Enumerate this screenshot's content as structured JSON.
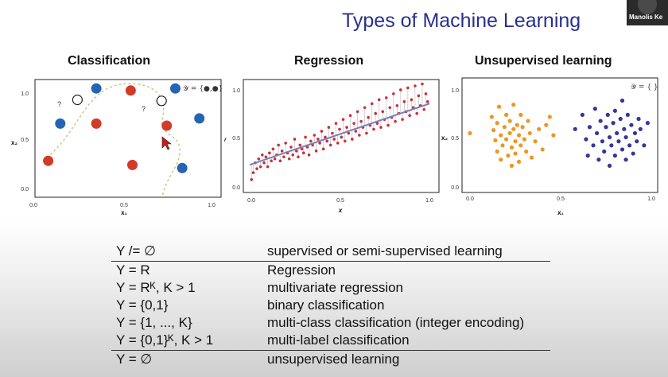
{
  "slide": {
    "title": "Types of Machine Learning",
    "presenter_name": "Manolis Ke"
  },
  "panels": {
    "classification": {
      "title": "Classification",
      "annotation": "𝒴 = {●,●}",
      "question_mark": "?",
      "xlabel": "x₁",
      "ylabel": "x₂",
      "xticks": [
        "0.0",
        "0.5",
        "1.0"
      ],
      "yticks": [
        "0.0",
        "0.5",
        "1.0"
      ],
      "colors": {
        "red": "#d23a2a",
        "blue": "#2563b4"
      }
    },
    "regression": {
      "title": "Regression",
      "xlabel": "x",
      "ylabel": "y",
      "xticks": [
        "0.0",
        "0.5",
        "1.0"
      ],
      "yticks": [
        "0.0",
        "0.5",
        "1.0"
      ],
      "colors": {
        "points": "#c8303a",
        "line": "#7a80b8"
      }
    },
    "unsupervised": {
      "title": "Unsupervised learning",
      "annotation": "𝒴 = { }",
      "xlabel": "x₁",
      "ylabel": "x₂",
      "xticks": [
        "0.0",
        "0.5",
        "1.0"
      ],
      "yticks": [
        "0.0",
        "0.5",
        "1.0"
      ],
      "colors": {
        "cluster_a": "#f0961e",
        "cluster_b": "#33389a"
      }
    }
  },
  "chart_data": [
    {
      "type": "scatter",
      "title": "Classification",
      "xlim": [
        0,
        1
      ],
      "ylim": [
        0,
        1
      ],
      "series": [
        {
          "name": "red",
          "points": [
            [
              0.04,
              0.26
            ],
            [
              0.32,
              0.62
            ],
            [
              0.52,
              0.94
            ],
            [
              0.53,
              0.22
            ],
            [
              0.73,
              0.6
            ]
          ]
        },
        {
          "name": "blue",
          "points": [
            [
              0.11,
              0.62
            ],
            [
              0.32,
              0.96
            ],
            [
              0.78,
              0.96
            ],
            [
              0.92,
              0.67
            ],
            [
              0.82,
              0.19
            ]
          ]
        },
        {
          "name": "unlabeled",
          "points": [
            [
              0.21,
              0.85
            ],
            [
              0.7,
              0.84
            ]
          ]
        }
      ]
    },
    {
      "type": "scatter",
      "title": "Regression",
      "xlim": [
        0,
        1
      ],
      "ylim": [
        0,
        1
      ],
      "trend": {
        "x0": 0.0,
        "y0": 0.2,
        "x1": 1.0,
        "y1": 0.82
      },
      "points": [
        [
          0.01,
          0.05
        ],
        [
          0.02,
          0.12
        ],
        [
          0.03,
          0.22
        ],
        [
          0.04,
          0.16
        ],
        [
          0.05,
          0.26
        ],
        [
          0.06,
          0.18
        ],
        [
          0.07,
          0.3
        ],
        [
          0.08,
          0.22
        ],
        [
          0.09,
          0.28
        ],
        [
          0.1,
          0.18
        ],
        [
          0.11,
          0.32
        ],
        [
          0.12,
          0.24
        ],
        [
          0.13,
          0.36
        ],
        [
          0.14,
          0.26
        ],
        [
          0.15,
          0.3
        ],
        [
          0.16,
          0.4
        ],
        [
          0.17,
          0.24
        ],
        [
          0.18,
          0.34
        ],
        [
          0.19,
          0.28
        ],
        [
          0.2,
          0.42
        ],
        [
          0.21,
          0.32
        ],
        [
          0.22,
          0.26
        ],
        [
          0.23,
          0.38
        ],
        [
          0.24,
          0.3
        ],
        [
          0.25,
          0.46
        ],
        [
          0.26,
          0.34
        ],
        [
          0.27,
          0.28
        ],
        [
          0.28,
          0.4
        ],
        [
          0.29,
          0.36
        ],
        [
          0.3,
          0.32
        ],
        [
          0.31,
          0.48
        ],
        [
          0.32,
          0.38
        ],
        [
          0.33,
          0.3
        ],
        [
          0.34,
          0.44
        ],
        [
          0.35,
          0.4
        ],
        [
          0.36,
          0.5
        ],
        [
          0.37,
          0.34
        ],
        [
          0.38,
          0.46
        ],
        [
          0.39,
          0.42
        ],
        [
          0.4,
          0.54
        ],
        [
          0.41,
          0.36
        ],
        [
          0.42,
          0.48
        ],
        [
          0.43,
          0.44
        ],
        [
          0.44,
          0.58
        ],
        [
          0.45,
          0.4
        ],
        [
          0.46,
          0.52
        ],
        [
          0.47,
          0.46
        ],
        [
          0.48,
          0.62
        ],
        [
          0.49,
          0.42
        ],
        [
          0.5,
          0.56
        ],
        [
          0.51,
          0.48
        ],
        [
          0.52,
          0.66
        ],
        [
          0.53,
          0.44
        ],
        [
          0.54,
          0.58
        ],
        [
          0.55,
          0.52
        ],
        [
          0.56,
          0.7
        ],
        [
          0.57,
          0.46
        ],
        [
          0.58,
          0.62
        ],
        [
          0.59,
          0.54
        ],
        [
          0.6,
          0.74
        ],
        [
          0.61,
          0.5
        ],
        [
          0.62,
          0.64
        ],
        [
          0.63,
          0.58
        ],
        [
          0.64,
          0.78
        ],
        [
          0.65,
          0.52
        ],
        [
          0.66,
          0.68
        ],
        [
          0.67,
          0.6
        ],
        [
          0.68,
          0.82
        ],
        [
          0.69,
          0.56
        ],
        [
          0.7,
          0.72
        ],
        [
          0.71,
          0.62
        ],
        [
          0.72,
          0.86
        ],
        [
          0.73,
          0.58
        ],
        [
          0.74,
          0.74
        ],
        [
          0.75,
          0.66
        ],
        [
          0.76,
          0.88
        ],
        [
          0.77,
          0.6
        ],
        [
          0.78,
          0.78
        ],
        [
          0.79,
          0.68
        ],
        [
          0.8,
          0.92
        ],
        [
          0.81,
          0.64
        ],
        [
          0.82,
          0.8
        ],
        [
          0.83,
          0.72
        ],
        [
          0.84,
          0.96
        ],
        [
          0.85,
          0.66
        ],
        [
          0.86,
          0.84
        ],
        [
          0.87,
          0.74
        ],
        [
          0.88,
          0.98
        ],
        [
          0.89,
          0.7
        ],
        [
          0.9,
          0.86
        ],
        [
          0.91,
          0.78
        ],
        [
          0.92,
          1.0
        ],
        [
          0.93,
          0.72
        ],
        [
          0.94,
          0.9
        ],
        [
          0.95,
          0.8
        ],
        [
          0.96,
          1.02
        ],
        [
          0.97,
          0.76
        ],
        [
          0.98,
          0.92
        ],
        [
          0.99,
          0.84
        ]
      ]
    },
    {
      "type": "scatter",
      "title": "Unsupervised learning",
      "xlim": [
        0,
        1
      ],
      "ylim": [
        0,
        1
      ],
      "series": [
        {
          "name": "cluster_a",
          "points": [
            [
              0.0,
              0.52
            ],
            [
              0.12,
              0.68
            ],
            [
              0.13,
              0.55
            ],
            [
              0.14,
              0.45
            ],
            [
              0.15,
              0.62
            ],
            [
              0.15,
              0.34
            ],
            [
              0.16,
              0.78
            ],
            [
              0.17,
              0.5
            ],
            [
              0.17,
              0.26
            ],
            [
              0.18,
              0.4
            ],
            [
              0.19,
              0.58
            ],
            [
              0.2,
              0.7
            ],
            [
              0.2,
              0.46
            ],
            [
              0.21,
              0.3
            ],
            [
              0.22,
              0.64
            ],
            [
              0.22,
              0.52
            ],
            [
              0.23,
              0.38
            ],
            [
              0.23,
              0.2
            ],
            [
              0.24,
              0.8
            ],
            [
              0.24,
              0.56
            ],
            [
              0.25,
              0.44
            ],
            [
              0.25,
              0.32
            ],
            [
              0.26,
              0.6
            ],
            [
              0.27,
              0.5
            ],
            [
              0.27,
              0.24
            ],
            [
              0.28,
              0.7
            ],
            [
              0.28,
              0.4
            ],
            [
              0.29,
              0.58
            ],
            [
              0.3,
              0.46
            ],
            [
              0.31,
              0.34
            ],
            [
              0.32,
              0.64
            ],
            [
              0.33,
              0.52
            ],
            [
              0.34,
              0.28
            ],
            [
              0.36,
              0.44
            ],
            [
              0.38,
              0.56
            ],
            [
              0.4,
              0.36
            ],
            [
              0.42,
              0.6
            ],
            [
              0.44,
              0.68
            ],
            [
              0.46,
              0.5
            ]
          ]
        },
        {
          "name": "cluster_b",
          "points": [
            [
              0.58,
              0.56
            ],
            [
              0.62,
              0.7
            ],
            [
              0.64,
              0.46
            ],
            [
              0.65,
              0.3
            ],
            [
              0.66,
              0.58
            ],
            [
              0.68,
              0.4
            ],
            [
              0.69,
              0.76
            ],
            [
              0.7,
              0.52
            ],
            [
              0.71,
              0.26
            ],
            [
              0.72,
              0.64
            ],
            [
              0.73,
              0.44
            ],
            [
              0.74,
              0.34
            ],
            [
              0.75,
              0.58
            ],
            [
              0.76,
              0.7
            ],
            [
              0.77,
              0.2
            ],
            [
              0.77,
              0.48
            ],
            [
              0.78,
              0.4
            ],
            [
              0.79,
              0.62
            ],
            [
              0.8,
              0.3
            ],
            [
              0.8,
              0.74
            ],
            [
              0.81,
              0.52
            ],
            [
              0.82,
              0.44
            ],
            [
              0.83,
              0.66
            ],
            [
              0.84,
              0.36
            ],
            [
              0.84,
              0.84
            ],
            [
              0.85,
              0.56
            ],
            [
              0.86,
              0.26
            ],
            [
              0.86,
              0.48
            ],
            [
              0.87,
              0.7
            ],
            [
              0.88,
              0.4
            ],
            [
              0.89,
              0.6
            ],
            [
              0.9,
              0.32
            ],
            [
              0.91,
              0.52
            ],
            [
              0.92,
              0.44
            ],
            [
              0.93,
              0.66
            ],
            [
              0.94,
              0.56
            ],
            [
              0.96,
              0.4
            ],
            [
              0.98,
              0.62
            ]
          ]
        }
      ]
    }
  ],
  "table": {
    "rows": [
      {
        "lhs": "Y /= ∅",
        "rhs": "supervised or semi-supervised learning"
      },
      {
        "lhs": "Y = R",
        "rhs": "Regression"
      },
      {
        "lhs": "Y = Rᴷ, K > 1",
        "rhs": "multivariate regression"
      },
      {
        "lhs": "Y = {0,1}",
        "rhs": "binary classification"
      },
      {
        "lhs": "Y = {1, ..., K}",
        "rhs": "multi-class classification (integer encoding)"
      },
      {
        "lhs": "Y = {0,1}ᴷ, K > 1",
        "rhs": "multi-label classification"
      },
      {
        "lhs": "Y = ∅",
        "rhs": "unsupervised learning"
      }
    ]
  }
}
